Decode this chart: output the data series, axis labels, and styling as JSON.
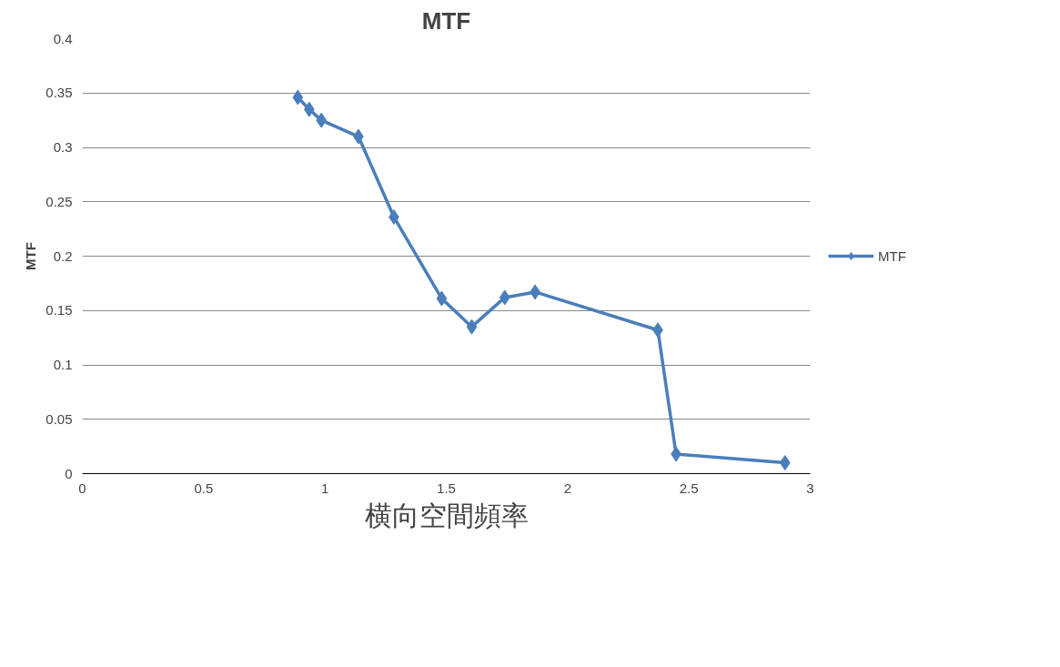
{
  "chart_data": {
    "type": "line",
    "title": "MTF",
    "xlabel": "横向空間頻率",
    "ylabel": "MTF",
    "xlim": [
      0,
      3
    ],
    "xticks": [
      0,
      0.5,
      1,
      1.5,
      2,
      2.5,
      3
    ],
    "ylim": [
      0,
      0.4
    ],
    "yticks": [
      0,
      0.05,
      0.1,
      0.15,
      0.2,
      0.25,
      0.3,
      0.35,
      0.4
    ],
    "grid": "y",
    "legend": "right",
    "marker": "diamond",
    "line_style": "solid",
    "series": [
      {
        "name": "MTF",
        "color": "#4a7ebb",
        "x": [
          0.888,
          0.935,
          0.985,
          1.138,
          1.284,
          1.481,
          1.605,
          1.741,
          1.866,
          2.372,
          2.447,
          2.896
        ],
        "values": [
          0.346,
          0.335,
          0.325,
          0.31,
          0.236,
          0.161,
          0.135,
          0.162,
          0.167,
          0.132,
          0.018,
          0.01
        ]
      }
    ]
  }
}
